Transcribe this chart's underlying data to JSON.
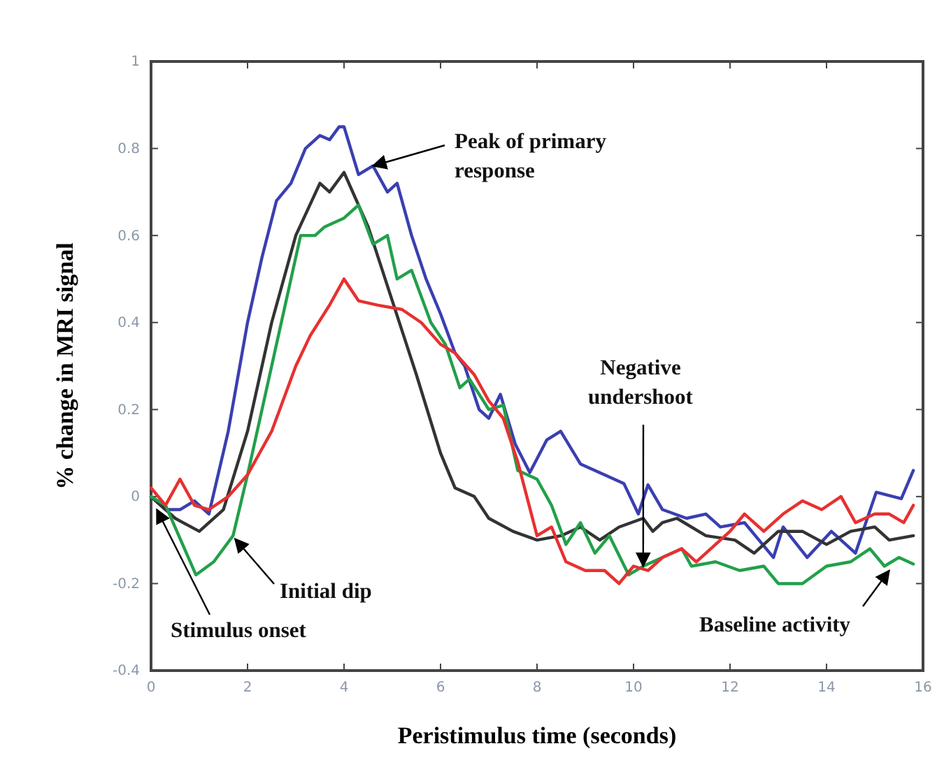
{
  "chart_data": {
    "type": "line",
    "xlabel": "Peristimulus time (seconds)",
    "ylabel": "% change in MRI signal",
    "xlim": [
      0,
      16
    ],
    "ylim": [
      -0.4,
      1
    ],
    "xticks": [
      0,
      2,
      4,
      6,
      8,
      10,
      12,
      14,
      16
    ],
    "yticks": [
      -0.4,
      -0.2,
      0,
      0.2,
      0.4,
      0.6,
      0.8,
      1
    ],
    "grid": false,
    "line_style": "solid",
    "series": [
      {
        "color": "#3a3fb0",
        "x": [
          0,
          0.3,
          0.6,
          0.9,
          1.2,
          1.6,
          2.0,
          2.3,
          2.6,
          2.9,
          3.2,
          3.5,
          3.7,
          3.9,
          4.0,
          4.3,
          4.6,
          4.9,
          5.1,
          5.4,
          5.7,
          6.0,
          6.3,
          6.5,
          6.8,
          7.0,
          7.24,
          7.55,
          7.85,
          8.2,
          8.49,
          8.9,
          9.4,
          9.8,
          10.1,
          10.3,
          10.6,
          11.1,
          11.5,
          11.8,
          12.3,
          12.9,
          13.1,
          13.6,
          14.1,
          14.6,
          15.03,
          15.55,
          15.8
        ],
        "values": [
          0,
          -0.03,
          -0.03,
          -0.01,
          -0.04,
          0.15,
          0.4,
          0.55,
          0.68,
          0.72,
          0.8,
          0.83,
          0.82,
          0.85,
          0.85,
          0.74,
          0.76,
          0.7,
          0.72,
          0.6,
          0.5,
          0.42,
          0.33,
          0.3,
          0.2,
          0.18,
          0.235,
          0.12,
          0.055,
          0.13,
          0.15,
          0.075,
          0.05,
          0.03,
          -0.04,
          0.027,
          -0.03,
          -0.05,
          -0.04,
          -0.07,
          -0.06,
          -0.14,
          -0.07,
          -0.14,
          -0.08,
          -0.13,
          0.01,
          -0.005,
          0.06
        ]
      },
      {
        "color": "#333333",
        "x": [
          0,
          0.5,
          1.0,
          1.5,
          2.0,
          2.5,
          3.0,
          3.5,
          3.7,
          4.0,
          4.5,
          5.0,
          5.5,
          6.0,
          6.3,
          6.7,
          7.0,
          7.5,
          8.0,
          8.5,
          8.9,
          9.3,
          9.7,
          10.2,
          10.4,
          10.6,
          10.9,
          11.5,
          12.1,
          12.5,
          13.0,
          13.5,
          14.0,
          14.5,
          15.0,
          15.3,
          15.8
        ],
        "values": [
          0,
          -0.05,
          -0.08,
          -0.03,
          0.15,
          0.4,
          0.6,
          0.72,
          0.7,
          0.745,
          0.62,
          0.45,
          0.28,
          0.1,
          0.02,
          0.0,
          -0.05,
          -0.08,
          -0.1,
          -0.09,
          -0.07,
          -0.1,
          -0.07,
          -0.05,
          -0.08,
          -0.06,
          -0.05,
          -0.09,
          -0.1,
          -0.13,
          -0.08,
          -0.08,
          -0.11,
          -0.08,
          -0.07,
          -0.1,
          -0.09
        ]
      },
      {
        "color": "#22a04a",
        "x": [
          0,
          0.3,
          0.93,
          1.3,
          1.7,
          2.0,
          2.5,
          2.9,
          3.1,
          3.4,
          3.6,
          4.0,
          4.3,
          4.6,
          4.9,
          5.1,
          5.4,
          5.8,
          6.1,
          6.4,
          6.6,
          7.0,
          7.3,
          7.6,
          8.0,
          8.3,
          8.6,
          8.9,
          9.2,
          9.5,
          9.9,
          10.2,
          10.6,
          11.0,
          11.2,
          11.7,
          12.2,
          12.7,
          13.0,
          13.5,
          14.0,
          14.5,
          14.9,
          15.2,
          15.5,
          15.8
        ],
        "values": [
          0,
          -0.02,
          -0.18,
          -0.15,
          -0.09,
          0.05,
          0.3,
          0.5,
          0.6,
          0.6,
          0.62,
          0.64,
          0.67,
          0.58,
          0.6,
          0.5,
          0.52,
          0.4,
          0.35,
          0.25,
          0.27,
          0.2,
          0.21,
          0.06,
          0.04,
          -0.02,
          -0.11,
          -0.06,
          -0.13,
          -0.09,
          -0.18,
          -0.16,
          -0.14,
          -0.12,
          -0.16,
          -0.15,
          -0.17,
          -0.16,
          -0.2,
          -0.2,
          -0.16,
          -0.15,
          -0.12,
          -0.16,
          -0.14,
          -0.155
        ]
      },
      {
        "color": "#e83030",
        "x": [
          0,
          0.3,
          0.6,
          0.9,
          1.2,
          1.6,
          2.0,
          2.5,
          3.0,
          3.3,
          3.7,
          4.0,
          4.3,
          4.7,
          5.2,
          5.6,
          6.0,
          6.3,
          6.7,
          7.0,
          7.3,
          7.6,
          8.0,
          8.3,
          8.6,
          9.0,
          9.4,
          9.7,
          10.0,
          10.3,
          10.6,
          11.0,
          11.3,
          11.6,
          12.0,
          12.3,
          12.7,
          13.1,
          13.5,
          13.9,
          14.3,
          14.6,
          15.0,
          15.3,
          15.6,
          15.8
        ],
        "values": [
          0.02,
          -0.02,
          0.04,
          -0.02,
          -0.03,
          0.0,
          0.05,
          0.15,
          0.3,
          0.37,
          0.44,
          0.5,
          0.45,
          0.44,
          0.43,
          0.4,
          0.35,
          0.33,
          0.28,
          0.22,
          0.18,
          0.08,
          -0.09,
          -0.07,
          -0.15,
          -0.17,
          -0.17,
          -0.2,
          -0.16,
          -0.17,
          -0.14,
          -0.12,
          -0.15,
          -0.12,
          -0.08,
          -0.04,
          -0.08,
          -0.04,
          -0.01,
          -0.03,
          0.0,
          -0.06,
          -0.04,
          -0.04,
          -0.06,
          -0.02
        ]
      }
    ],
    "annotations": [
      {
        "text": "Peak of primary response",
        "x": 4.6,
        "y": 0.76
      },
      {
        "text": "Negative undershoot",
        "x": 10.2,
        "y": -0.16
      },
      {
        "text": "Initial dip",
        "x": 1.74,
        "y": -0.097
      },
      {
        "text": "Stimulus onset",
        "x": 0.12,
        "y": -0.03
      },
      {
        "text": "Baseline activity",
        "x": 15.3,
        "y": -0.17
      }
    ]
  }
}
